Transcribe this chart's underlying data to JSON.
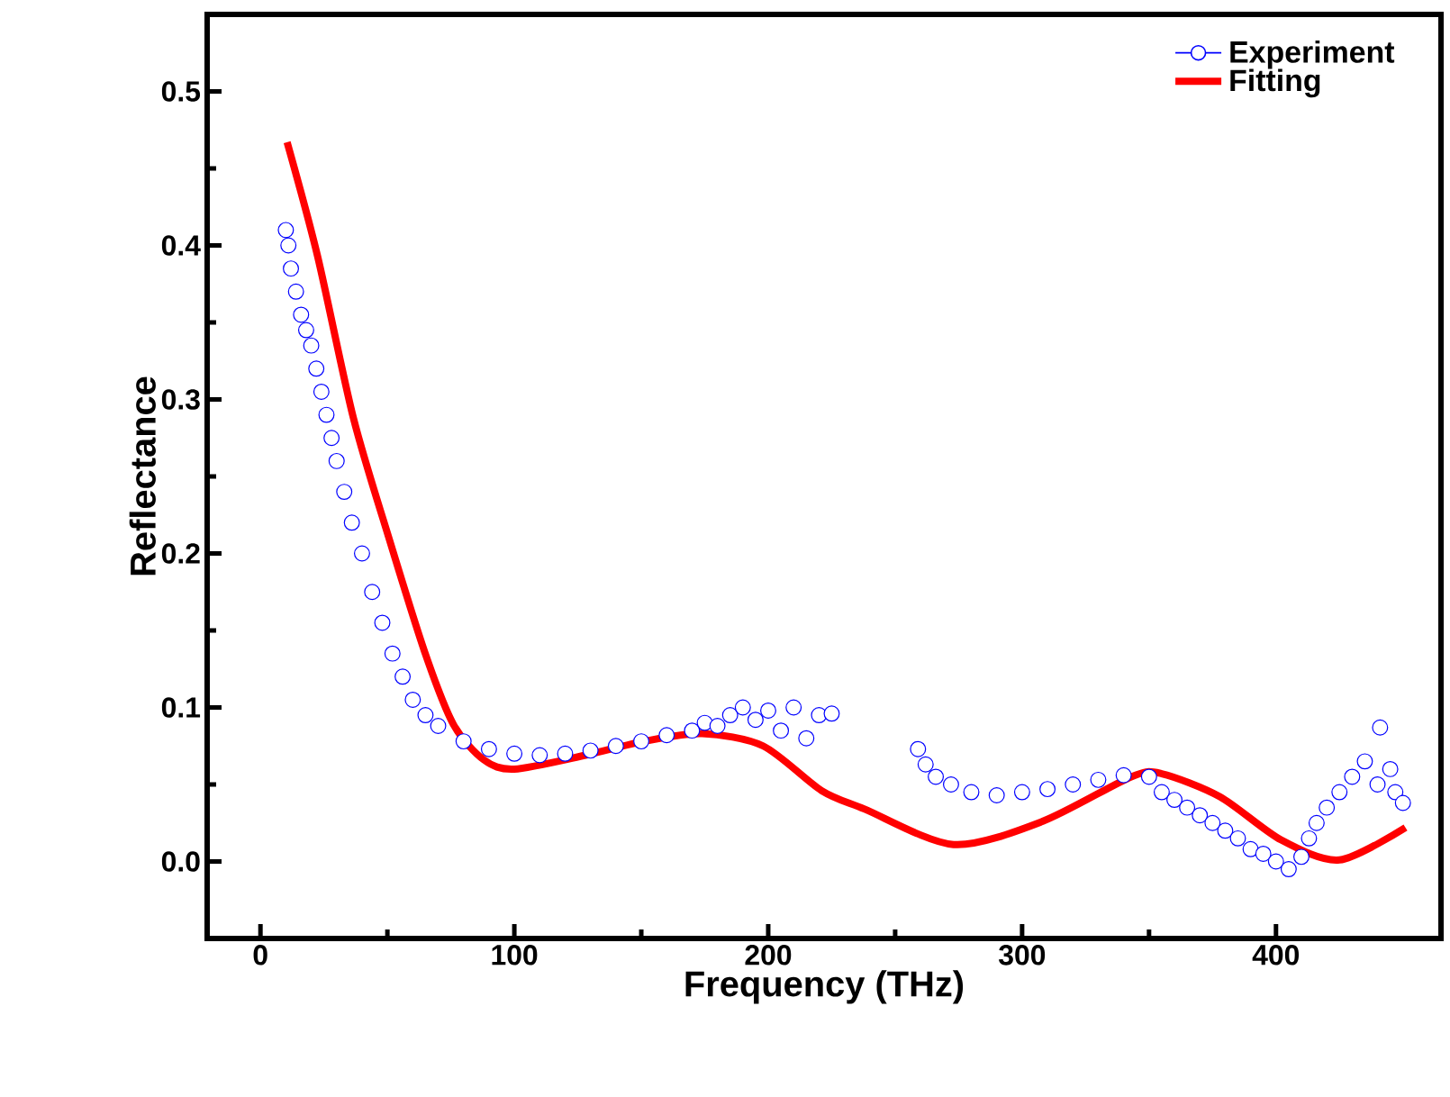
{
  "chart_data": {
    "type": "scatter",
    "xlabel": "Frequency (THz)",
    "ylabel": "Reflectance",
    "xlim": [
      -21,
      465
    ],
    "ylim": [
      -0.05,
      0.55
    ],
    "xticks": [
      0,
      100,
      200,
      300,
      400
    ],
    "yticks": [
      {
        "value": 0,
        "label": "0.0"
      },
      {
        "value": 0.1,
        "label": "0.1"
      },
      {
        "value": 0.2,
        "label": "0.2"
      },
      {
        "value": 0.3,
        "label": "0.3"
      },
      {
        "value": 0.4,
        "label": "0.4"
      },
      {
        "value": 0.5,
        "label": "0.5"
      }
    ],
    "legend": "top right",
    "grid": false,
    "series": [
      {
        "name": "Experiment",
        "marker": "circle",
        "color": "#0000ff",
        "x": [
          10,
          11,
          12,
          14,
          16,
          18,
          20,
          22,
          24,
          26,
          28,
          30,
          33,
          36,
          40,
          44,
          48,
          52,
          56,
          60,
          65,
          70,
          80,
          90,
          100,
          110,
          120,
          130,
          140,
          150,
          160,
          170,
          175,
          180,
          185,
          190,
          195,
          200,
          205,
          210,
          215,
          220,
          225,
          259,
          262,
          266,
          272,
          280,
          290,
          300,
          310,
          320,
          330,
          340,
          350,
          355,
          360,
          365,
          370,
          375,
          380,
          385,
          390,
          395,
          400,
          405,
          410,
          413,
          416,
          420,
          425,
          430,
          435,
          440,
          441,
          445,
          447,
          450
        ],
        "values": [
          0.41,
          0.4,
          0.385,
          0.37,
          0.355,
          0.345,
          0.335,
          0.32,
          0.305,
          0.29,
          0.275,
          0.26,
          0.24,
          0.22,
          0.2,
          0.175,
          0.155,
          0.135,
          0.12,
          0.105,
          0.095,
          0.088,
          0.078,
          0.073,
          0.07,
          0.069,
          0.07,
          0.072,
          0.075,
          0.078,
          0.082,
          0.085,
          0.09,
          0.088,
          0.095,
          0.1,
          0.092,
          0.098,
          0.085,
          0.1,
          0.08,
          0.095,
          0.096,
          0.073,
          0.063,
          0.055,
          0.05,
          0.045,
          0.043,
          0.045,
          0.047,
          0.05,
          0.053,
          0.056,
          0.055,
          0.045,
          0.04,
          0.035,
          0.03,
          0.025,
          0.02,
          0.015,
          0.008,
          0.005,
          0.0,
          -0.005,
          0.003,
          0.015,
          0.025,
          0.035,
          0.045,
          0.055,
          0.065,
          0.05,
          0.087,
          0.06,
          0.045,
          0.038
        ]
      },
      {
        "name": "Fitting",
        "type": "line",
        "marker": "none",
        "line_style": "solid",
        "color": "#ff0000",
        "x": [
          10.5,
          22.5,
          36.6,
          50.6,
          64.7,
          76,
          88,
          100,
          128,
          151,
          174,
          198,
          221,
          238,
          273,
          308,
          343,
          355,
          378,
          402,
          425,
          451
        ],
        "values": [
          0.467,
          0.393,
          0.288,
          0.21,
          0.136,
          0.089,
          0.066,
          0.06,
          0.069,
          0.078,
          0.083,
          0.075,
          0.046,
          0.034,
          0.011,
          0.026,
          0.055,
          0.057,
          0.042,
          0.014,
          0.001,
          0.022
        ]
      }
    ]
  }
}
